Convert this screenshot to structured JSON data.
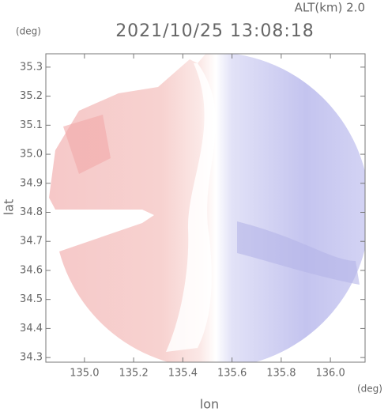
{
  "chart_data": {
    "type": "radar-field",
    "title": "2021/10/25 13:08:18",
    "subtitle": "ALT(km) 2.0",
    "x_label": "lon",
    "y_label": "lat",
    "x_unit": "(deg)",
    "y_unit": "(deg)",
    "xlim": [
      134.843,
      136.141
    ],
    "ylim": [
      34.284,
      35.346
    ],
    "xticks": [
      {
        "value": 135.0,
        "label": "135.0"
      },
      135.2,
      135.4,
      135.6,
      135.8,
      {
        "value": 136.0,
        "label": "136.0"
      }
    ],
    "yticks": [
      34.3,
      34.4,
      34.5,
      34.6,
      34.7,
      34.8,
      34.9,
      {
        "value": 35.0,
        "label": "35.0"
      },
      35.1,
      35.2,
      35.3
    ]
  }
}
